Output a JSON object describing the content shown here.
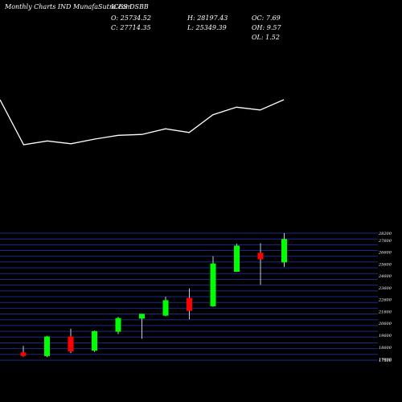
{
  "header": {
    "site_label": "Monthly Charts IND MunafaSutra.com",
    "symbol": "ICES DSBB",
    "open": "O: 25734.52",
    "close": "C: 27714.35",
    "high": "H: 28197.43",
    "low": "L: 25349.39",
    "oc": "OC: 7.69",
    "oh": "OH: 9.57",
    "ol": "OL: 1.52"
  },
  "colors": {
    "background": "#000000",
    "up": "#00ff00",
    "down": "#ff0000",
    "line": "#ffffff",
    "grid": "#1a2a8a"
  },
  "chart_data": [
    {
      "type": "line",
      "title": "",
      "series": [
        {
          "values": [
            27400,
            22600,
            23000,
            22700,
            23200,
            23600,
            23700,
            24300,
            23900,
            25800,
            26600,
            26300,
            27400
          ]
        }
      ],
      "grid": false
    },
    {
      "type": "candlestick",
      "title": "",
      "ylim": [
        17500,
        28200
      ],
      "y_ticks": [
        "28200",
        "27600",
        "26600",
        "25600",
        "24600",
        "23600",
        "22600",
        "21600",
        "20600",
        "19600",
        "18600",
        "17600",
        "17500"
      ],
      "y_tick_values": [
        28200,
        27600,
        26600,
        25600,
        24600,
        23600,
        22600,
        21600,
        20600,
        19600,
        18600,
        17600,
        17500
      ],
      "grid": true,
      "candles": [
        {
          "open": 18150,
          "high": 18700,
          "low": 17800,
          "close": 17850
        },
        {
          "open": 17850,
          "high": 19550,
          "low": 17750,
          "close": 19500
        },
        {
          "open": 19500,
          "high": 20150,
          "low": 18100,
          "close": 18250
        },
        {
          "open": 18300,
          "high": 20000,
          "low": 18200,
          "close": 19950
        },
        {
          "open": 19900,
          "high": 21150,
          "low": 19700,
          "close": 21050
        },
        {
          "open": 21000,
          "high": 21400,
          "low": 19300,
          "close": 21400
        },
        {
          "open": 21250,
          "high": 22850,
          "low": 21200,
          "close": 22550
        },
        {
          "open": 22750,
          "high": 23550,
          "low": 20950,
          "close": 21650
        },
        {
          "open": 22050,
          "high": 26250,
          "low": 22000,
          "close": 25650
        },
        {
          "open": 24950,
          "high": 27300,
          "low": 24950,
          "close": 27150
        },
        {
          "open": 26550,
          "high": 27350,
          "low": 23850,
          "close": 26000
        },
        {
          "open": 25734.52,
          "high": 28197.43,
          "low": 25349.39,
          "close": 27714.35
        }
      ]
    }
  ]
}
